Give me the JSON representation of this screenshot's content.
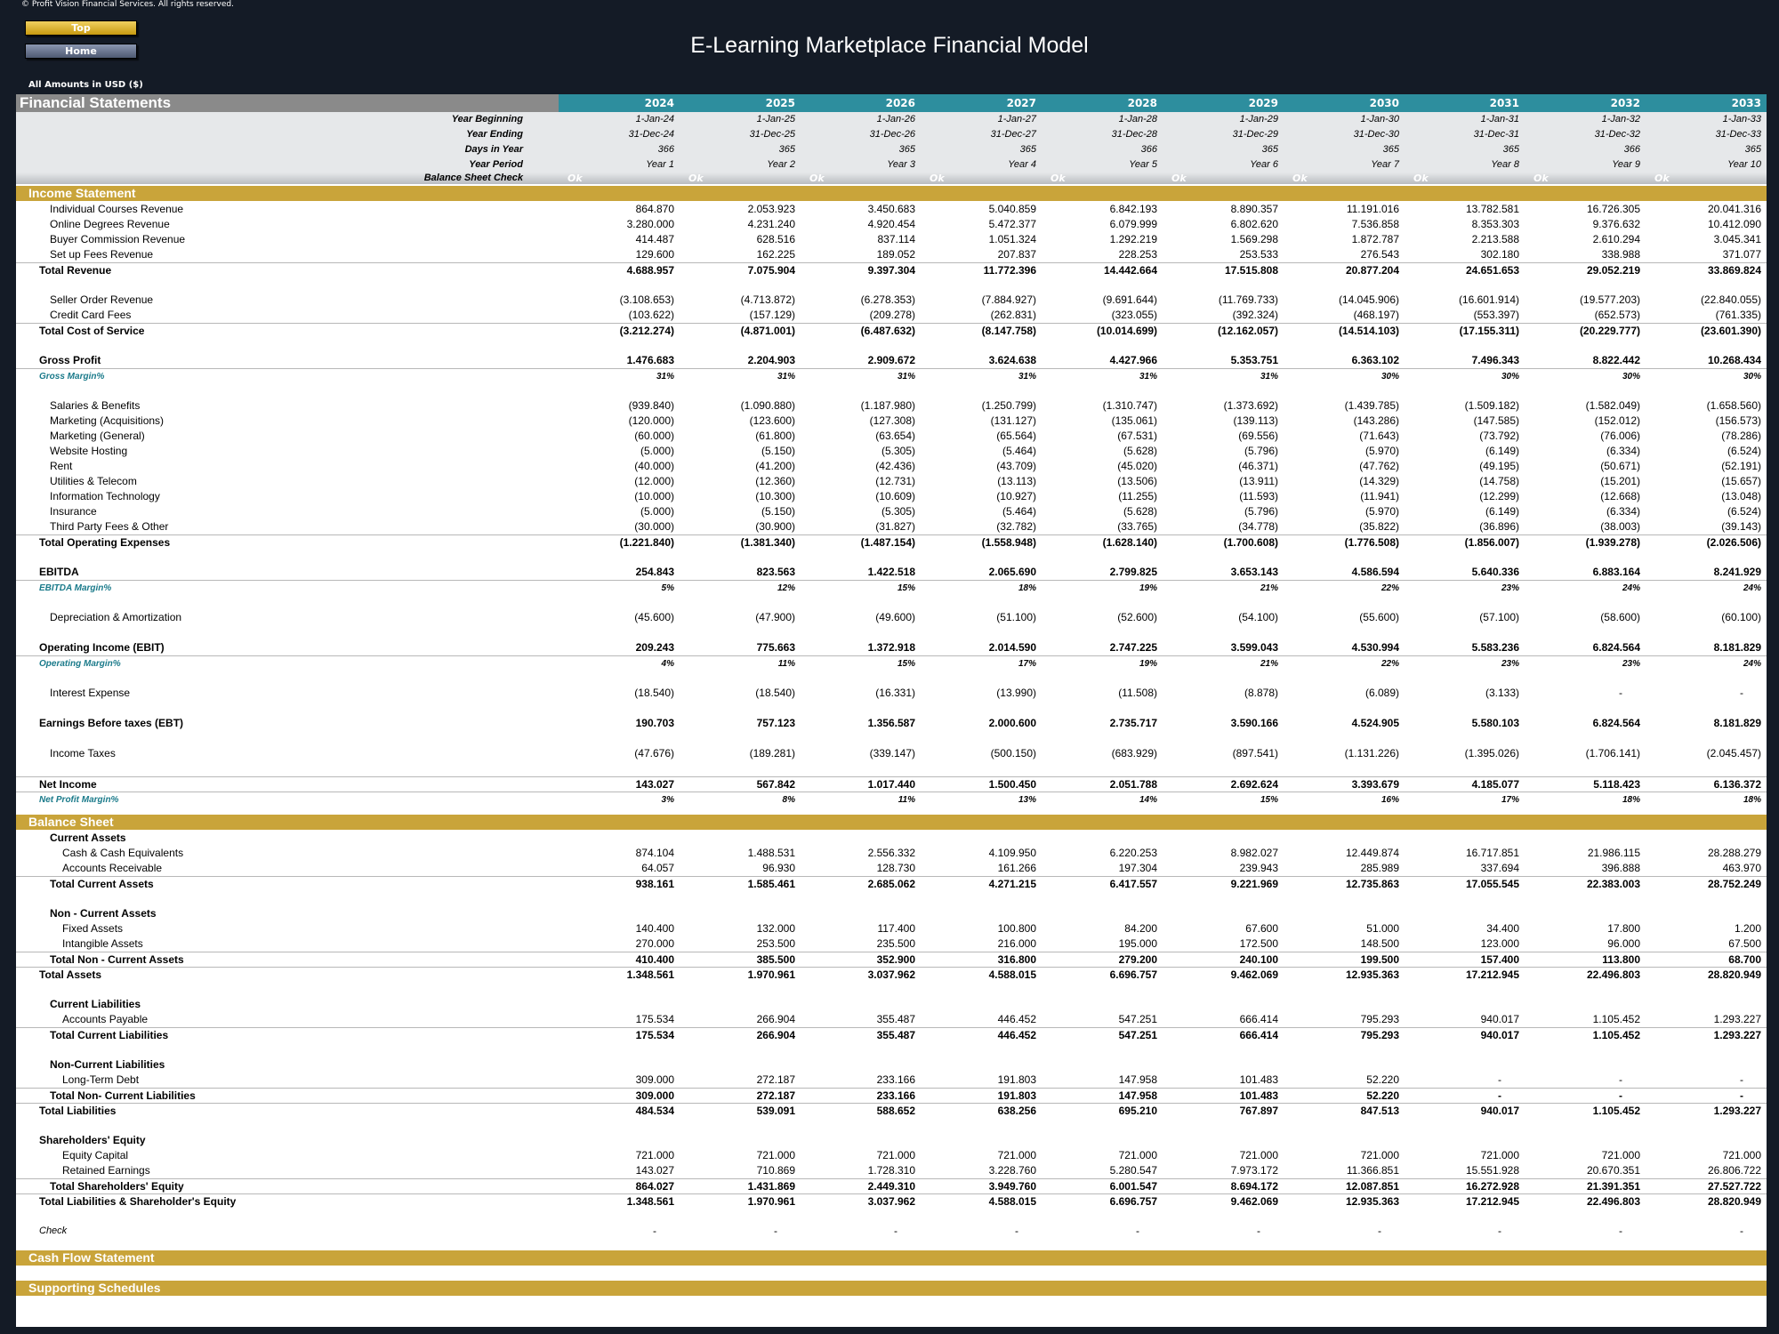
{
  "copyright": "© Profit Vision Financial Services. All rights reserved.",
  "nav": {
    "top_label": "Top",
    "home_label": "Home"
  },
  "title": "E-Learning Marketplace Financial Model",
  "amounts_note": "All Amounts in  USD ($)",
  "header": {
    "label": "Financial Statements",
    "years": [
      "2024",
      "2025",
      "2026",
      "2027",
      "2028",
      "2029",
      "2030",
      "2031",
      "2032",
      "2033"
    ]
  },
  "meta": [
    {
      "label": "Year Beginning",
      "values": [
        "1-Jan-24",
        "1-Jan-25",
        "1-Jan-26",
        "1-Jan-27",
        "1-Jan-28",
        "1-Jan-29",
        "1-Jan-30",
        "1-Jan-31",
        "1-Jan-32",
        "1-Jan-33"
      ]
    },
    {
      "label": "Year Ending",
      "values": [
        "31-Dec-24",
        "31-Dec-25",
        "31-Dec-26",
        "31-Dec-27",
        "31-Dec-28",
        "31-Dec-29",
        "31-Dec-30",
        "31-Dec-31",
        "31-Dec-32",
        "31-Dec-33"
      ]
    },
    {
      "label": "Days in Year",
      "values": [
        "366",
        "365",
        "365",
        "365",
        "366",
        "365",
        "365",
        "365",
        "366",
        "365"
      ]
    },
    {
      "label": "Year Period",
      "values": [
        "Year 1",
        "Year 2",
        "Year 3",
        "Year 4",
        "Year 5",
        "Year 6",
        "Year 7",
        "Year 8",
        "Year 9",
        "Year 10"
      ]
    }
  ],
  "balance_check": {
    "label": "Balance Sheet Check",
    "values": [
      "Ok",
      "Ok",
      "Ok",
      "Ok",
      "Ok",
      "Ok",
      "Ok",
      "Ok",
      "Ok",
      "Ok"
    ]
  },
  "sections": {
    "income_statement": "Income Statement",
    "balance_sheet": "Balance Sheet",
    "cash_flow": "Cash Flow Statement",
    "supporting": "Supporting Schedules"
  },
  "income_rows": [
    {
      "label": "Individual Courses Revenue",
      "indent": 2,
      "values": [
        "864.870",
        "2.053.923",
        "3.450.683",
        "5.040.859",
        "6.842.193",
        "8.890.357",
        "11.191.016",
        "13.782.581",
        "16.726.305",
        "20.041.316"
      ]
    },
    {
      "label": "Online Degrees Revenue",
      "indent": 2,
      "values": [
        "3.280.000",
        "4.231.240",
        "4.920.454",
        "5.472.377",
        "6.079.999",
        "6.802.620",
        "7.536.858",
        "8.353.303",
        "9.376.632",
        "10.412.090"
      ]
    },
    {
      "label": "Buyer Commission Revenue",
      "indent": 2,
      "values": [
        "414.487",
        "628.516",
        "837.114",
        "1.051.324",
        "1.292.219",
        "1.569.298",
        "1.872.787",
        "2.213.588",
        "2.610.294",
        "3.045.341"
      ]
    },
    {
      "label": "Set up Fees Revenue",
      "indent": 2,
      "values": [
        "129.600",
        "162.225",
        "189.052",
        "207.837",
        "228.253",
        "253.533",
        "276.543",
        "302.180",
        "338.988",
        "371.077"
      ]
    },
    {
      "label": "Total Revenue",
      "indent": 1,
      "style": "bold",
      "sep": true,
      "values": [
        "4.688.957",
        "7.075.904",
        "9.397.304",
        "11.772.396",
        "14.442.664",
        "17.515.808",
        "20.877.204",
        "24.651.653",
        "29.052.219",
        "33.869.824"
      ]
    },
    {
      "blank": true
    },
    {
      "label": "Seller Order Revenue",
      "indent": 2,
      "values": [
        "(3.108.653)",
        "(4.713.872)",
        "(6.278.353)",
        "(7.884.927)",
        "(9.691.644)",
        "(11.769.733)",
        "(14.045.906)",
        "(16.601.914)",
        "(19.577.203)",
        "(22.840.055)"
      ]
    },
    {
      "label": "Credit Card Fees",
      "indent": 2,
      "values": [
        "(103.622)",
        "(157.129)",
        "(209.278)",
        "(262.831)",
        "(323.055)",
        "(392.324)",
        "(468.197)",
        "(553.397)",
        "(652.573)",
        "(761.335)"
      ]
    },
    {
      "label": "Total Cost of Service",
      "indent": 1,
      "style": "bold",
      "sep": true,
      "values": [
        "(3.212.274)",
        "(4.871.001)",
        "(6.487.632)",
        "(8.147.758)",
        "(10.014.699)",
        "(12.162.057)",
        "(14.514.103)",
        "(17.155.311)",
        "(20.229.777)",
        "(23.601.390)"
      ]
    },
    {
      "blank": true
    },
    {
      "label": "Gross Profit",
      "indent": 1,
      "style": "bold",
      "values": [
        "1.476.683",
        "2.204.903",
        "2.909.672",
        "3.624.638",
        "4.427.966",
        "5.353.751",
        "6.363.102",
        "7.496.343",
        "8.822.442",
        "10.268.434"
      ]
    },
    {
      "label": "Gross Margin%",
      "indent": 1,
      "style": "margin",
      "sep": true,
      "values": [
        "31%",
        "31%",
        "31%",
        "31%",
        "31%",
        "31%",
        "30%",
        "30%",
        "30%",
        "30%"
      ]
    },
    {
      "blank": true
    },
    {
      "label": "Salaries & Benefits",
      "indent": 2,
      "values": [
        "(939.840)",
        "(1.090.880)",
        "(1.187.980)",
        "(1.250.799)",
        "(1.310.747)",
        "(1.373.692)",
        "(1.439.785)",
        "(1.509.182)",
        "(1.582.049)",
        "(1.658.560)"
      ]
    },
    {
      "label": "Marketing (Acquisitions)",
      "indent": 2,
      "values": [
        "(120.000)",
        "(123.600)",
        "(127.308)",
        "(131.127)",
        "(135.061)",
        "(139.113)",
        "(143.286)",
        "(147.585)",
        "(152.012)",
        "(156.573)"
      ]
    },
    {
      "label": "Marketing (General)",
      "indent": 2,
      "values": [
        "(60.000)",
        "(61.800)",
        "(63.654)",
        "(65.564)",
        "(67.531)",
        "(69.556)",
        "(71.643)",
        "(73.792)",
        "(76.006)",
        "(78.286)"
      ]
    },
    {
      "label": "Website Hosting",
      "indent": 2,
      "values": [
        "(5.000)",
        "(5.150)",
        "(5.305)",
        "(5.464)",
        "(5.628)",
        "(5.796)",
        "(5.970)",
        "(6.149)",
        "(6.334)",
        "(6.524)"
      ]
    },
    {
      "label": "Rent",
      "indent": 2,
      "values": [
        "(40.000)",
        "(41.200)",
        "(42.436)",
        "(43.709)",
        "(45.020)",
        "(46.371)",
        "(47.762)",
        "(49.195)",
        "(50.671)",
        "(52.191)"
      ]
    },
    {
      "label": "Utilities & Telecom",
      "indent": 2,
      "values": [
        "(12.000)",
        "(12.360)",
        "(12.731)",
        "(13.113)",
        "(13.506)",
        "(13.911)",
        "(14.329)",
        "(14.758)",
        "(15.201)",
        "(15.657)"
      ]
    },
    {
      "label": "Information Technology",
      "indent": 2,
      "values": [
        "(10.000)",
        "(10.300)",
        "(10.609)",
        "(10.927)",
        "(11.255)",
        "(11.593)",
        "(11.941)",
        "(12.299)",
        "(12.668)",
        "(13.048)"
      ]
    },
    {
      "label": "Insurance",
      "indent": 2,
      "values": [
        "(5.000)",
        "(5.150)",
        "(5.305)",
        "(5.464)",
        "(5.628)",
        "(5.796)",
        "(5.970)",
        "(6.149)",
        "(6.334)",
        "(6.524)"
      ]
    },
    {
      "label": "Third Party Fees & Other",
      "indent": 2,
      "values": [
        "(30.000)",
        "(30.900)",
        "(31.827)",
        "(32.782)",
        "(33.765)",
        "(34.778)",
        "(35.822)",
        "(36.896)",
        "(38.003)",
        "(39.143)"
      ]
    },
    {
      "label": "Total Operating Expenses",
      "indent": 1,
      "style": "bold",
      "sep": true,
      "values": [
        "(1.221.840)",
        "(1.381.340)",
        "(1.487.154)",
        "(1.558.948)",
        "(1.628.140)",
        "(1.700.608)",
        "(1.776.508)",
        "(1.856.007)",
        "(1.939.278)",
        "(2.026.506)"
      ]
    },
    {
      "blank": true
    },
    {
      "label": "EBITDA",
      "indent": 1,
      "style": "bold",
      "values": [
        "254.843",
        "823.563",
        "1.422.518",
        "2.065.690",
        "2.799.825",
        "3.653.143",
        "4.586.594",
        "5.640.336",
        "6.883.164",
        "8.241.929"
      ]
    },
    {
      "label": "EBITDA Margin%",
      "indent": 1,
      "style": "margin",
      "sep": true,
      "values": [
        "5%",
        "12%",
        "15%",
        "18%",
        "19%",
        "21%",
        "22%",
        "23%",
        "24%",
        "24%"
      ]
    },
    {
      "blank": true
    },
    {
      "label": "Depreciation & Amortization",
      "indent": 2,
      "values": [
        "(45.600)",
        "(47.900)",
        "(49.600)",
        "(51.100)",
        "(52.600)",
        "(54.100)",
        "(55.600)",
        "(57.100)",
        "(58.600)",
        "(60.100)"
      ]
    },
    {
      "blank": true
    },
    {
      "label": "Operating Income (EBIT)",
      "indent": 1,
      "style": "bold",
      "values": [
        "209.243",
        "775.663",
        "1.372.918",
        "2.014.590",
        "2.747.225",
        "3.599.043",
        "4.530.994",
        "5.583.236",
        "6.824.564",
        "8.181.829"
      ]
    },
    {
      "label": "Operating Margin%",
      "indent": 1,
      "style": "margin",
      "sep": true,
      "values": [
        "4%",
        "11%",
        "15%",
        "17%",
        "19%",
        "21%",
        "22%",
        "23%",
        "23%",
        "24%"
      ]
    },
    {
      "blank": true
    },
    {
      "label": "Interest Expense",
      "indent": 2,
      "values": [
        "(18.540)",
        "(18.540)",
        "(16.331)",
        "(13.990)",
        "(11.508)",
        "(8.878)",
        "(6.089)",
        "(3.133)",
        "-",
        "-"
      ]
    },
    {
      "blank": true
    },
    {
      "label": "Earnings Before taxes (EBT)",
      "indent": 1,
      "style": "bold",
      "values": [
        "190.703",
        "757.123",
        "1.356.587",
        "2.000.600",
        "2.735.717",
        "3.590.166",
        "4.524.905",
        "5.580.103",
        "6.824.564",
        "8.181.829"
      ]
    },
    {
      "blank": true
    },
    {
      "label": "Income Taxes",
      "indent": 2,
      "values": [
        "(47.676)",
        "(189.281)",
        "(339.147)",
        "(500.150)",
        "(683.929)",
        "(897.541)",
        "(1.131.226)",
        "(1.395.026)",
        "(1.706.141)",
        "(2.045.457)"
      ]
    },
    {
      "blank": true
    },
    {
      "label": "Net Income",
      "indent": 1,
      "style": "bold",
      "sep": true,
      "values": [
        "143.027",
        "567.842",
        "1.017.440",
        "1.500.450",
        "2.051.788",
        "2.692.624",
        "3.393.679",
        "4.185.077",
        "5.118.423",
        "6.136.372"
      ]
    },
    {
      "label": "Net Profit Margin%",
      "indent": 1,
      "style": "margin",
      "sep": true,
      "values": [
        "3%",
        "8%",
        "11%",
        "13%",
        "14%",
        "15%",
        "16%",
        "17%",
        "18%",
        "18%"
      ]
    }
  ],
  "balance_rows": [
    {
      "label": "Current Assets",
      "indent": 2,
      "style": "bold",
      "values": []
    },
    {
      "label": "Cash & Cash Equivalents",
      "indent": 3,
      "values": [
        "874.104",
        "1.488.531",
        "2.556.332",
        "4.109.950",
        "6.220.253",
        "8.982.027",
        "12.449.874",
        "16.717.851",
        "21.986.115",
        "28.288.279"
      ]
    },
    {
      "label": "Accounts Receivable",
      "indent": 3,
      "values": [
        "64.057",
        "96.930",
        "128.730",
        "161.266",
        "197.304",
        "239.943",
        "285.989",
        "337.694",
        "396.888",
        "463.970"
      ]
    },
    {
      "label": "Total Current Assets",
      "indent": 2,
      "style": "bold",
      "sep": true,
      "values": [
        "938.161",
        "1.585.461",
        "2.685.062",
        "4.271.215",
        "6.417.557",
        "9.221.969",
        "12.735.863",
        "17.055.545",
        "22.383.003",
        "28.752.249"
      ]
    },
    {
      "blank": true
    },
    {
      "label": "Non - Current Assets",
      "indent": 2,
      "style": "bold",
      "values": []
    },
    {
      "label": "Fixed Assets",
      "indent": 3,
      "values": [
        "140.400",
        "132.000",
        "117.400",
        "100.800",
        "84.200",
        "67.600",
        "51.000",
        "34.400",
        "17.800",
        "1.200"
      ]
    },
    {
      "label": "Intangible Assets",
      "indent": 3,
      "values": [
        "270.000",
        "253.500",
        "235.500",
        "216.000",
        "195.000",
        "172.500",
        "148.500",
        "123.000",
        "96.000",
        "67.500"
      ]
    },
    {
      "label": "Total Non - Current Assets",
      "indent": 2,
      "style": "bold",
      "sep": true,
      "values": [
        "410.400",
        "385.500",
        "352.900",
        "316.800",
        "279.200",
        "240.100",
        "199.500",
        "157.400",
        "113.800",
        "68.700"
      ]
    },
    {
      "label": "Total Assets",
      "indent": 1,
      "style": "bold",
      "sep": true,
      "values": [
        "1.348.561",
        "1.970.961",
        "3.037.962",
        "4.588.015",
        "6.696.757",
        "9.462.069",
        "12.935.363",
        "17.212.945",
        "22.496.803",
        "28.820.949"
      ]
    },
    {
      "blank": true
    },
    {
      "label": "Current Liabilities",
      "indent": 2,
      "style": "bold",
      "values": []
    },
    {
      "label": "Accounts Payable",
      "indent": 3,
      "values": [
        "175.534",
        "266.904",
        "355.487",
        "446.452",
        "547.251",
        "666.414",
        "795.293",
        "940.017",
        "1.105.452",
        "1.293.227"
      ]
    },
    {
      "label": "Total Current Liabilities",
      "indent": 2,
      "style": "bold",
      "sep": true,
      "values": [
        "175.534",
        "266.904",
        "355.487",
        "446.452",
        "547.251",
        "666.414",
        "795.293",
        "940.017",
        "1.105.452",
        "1.293.227"
      ]
    },
    {
      "blank": true
    },
    {
      "label": "Non-Current Liabilities",
      "indent": 2,
      "style": "bold",
      "values": []
    },
    {
      "label": "Long-Term Debt",
      "indent": 3,
      "values": [
        "309.000",
        "272.187",
        "233.166",
        "191.803",
        "147.958",
        "101.483",
        "52.220",
        "-",
        "-",
        "-"
      ]
    },
    {
      "label": "Total Non- Current Liabilities",
      "indent": 2,
      "style": "bold",
      "sep": true,
      "values": [
        "309.000",
        "272.187",
        "233.166",
        "191.803",
        "147.958",
        "101.483",
        "52.220",
        "-",
        "-",
        "-"
      ]
    },
    {
      "label": "Total Liabilities",
      "indent": 1,
      "style": "bold",
      "sep": true,
      "values": [
        "484.534",
        "539.091",
        "588.652",
        "638.256",
        "695.210",
        "767.897",
        "847.513",
        "940.017",
        "1.105.452",
        "1.293.227"
      ]
    },
    {
      "blank": true
    },
    {
      "label": "Shareholders' Equity",
      "indent": 1,
      "style": "bold",
      "values": []
    },
    {
      "label": "Equity Capital",
      "indent": 3,
      "values": [
        "721.000",
        "721.000",
        "721.000",
        "721.000",
        "721.000",
        "721.000",
        "721.000",
        "721.000",
        "721.000",
        "721.000"
      ]
    },
    {
      "label": "Retained Earnings",
      "indent": 3,
      "values": [
        "143.027",
        "710.869",
        "1.728.310",
        "3.228.760",
        "5.280.547",
        "7.973.172",
        "11.366.851",
        "15.551.928",
        "20.670.351",
        "26.806.722"
      ]
    },
    {
      "label": "Total Shareholders' Equity",
      "indent": 2,
      "style": "bold",
      "sep": true,
      "values": [
        "864.027",
        "1.431.869",
        "2.449.310",
        "3.949.760",
        "6.001.547",
        "8.694.172",
        "12.087.851",
        "16.272.928",
        "21.391.351",
        "27.527.722"
      ]
    },
    {
      "label": "Total Liabilities & Shareholder's Equity",
      "indent": 1,
      "style": "bold",
      "sep": true,
      "values": [
        "1.348.561",
        "1.970.961",
        "3.037.962",
        "4.588.015",
        "6.696.757",
        "9.462.069",
        "12.935.363",
        "17.212.945",
        "22.496.803",
        "28.820.949"
      ]
    },
    {
      "blank": true
    },
    {
      "label": "Check",
      "indent": 1,
      "style": "check",
      "values": [
        "-",
        "-",
        "-",
        "-",
        "-",
        "-",
        "-",
        "-",
        "-",
        "-"
      ]
    }
  ]
}
